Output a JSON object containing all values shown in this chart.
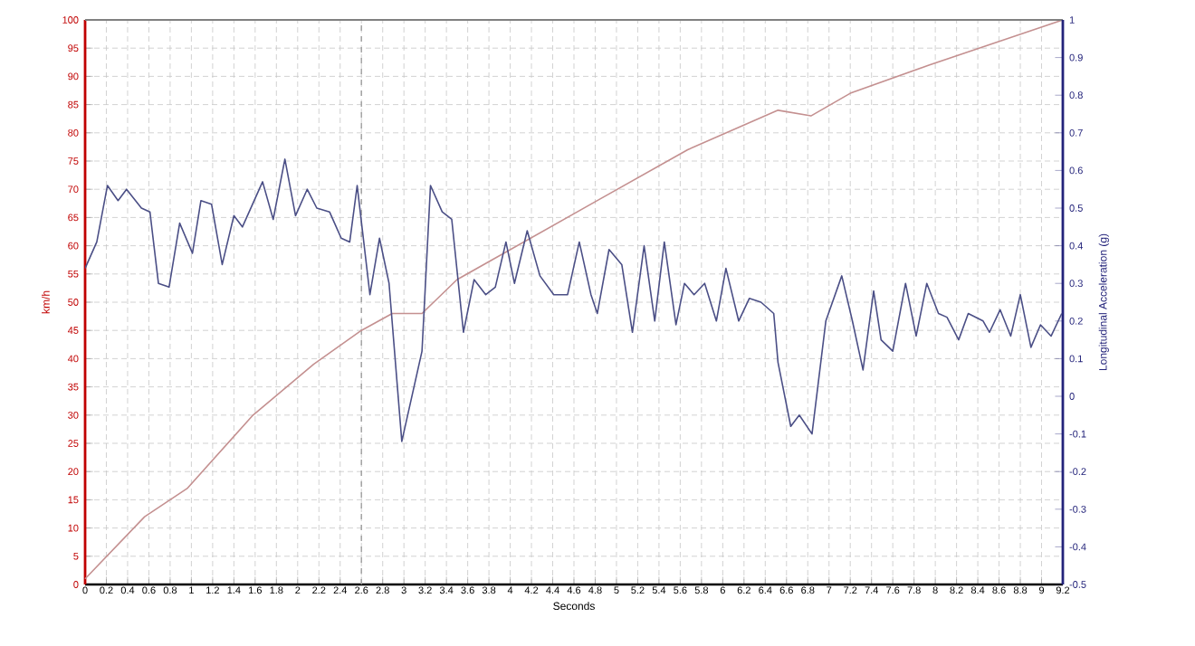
{
  "chart_data": {
    "type": "line",
    "xlabel": "Seconds",
    "ylabel": "km/h",
    "y2label": "Longitudinal Acceleration (g)",
    "xlim": [
      0,
      9.2
    ],
    "xticks": [
      0,
      0.2,
      0.4,
      0.6,
      0.8,
      1,
      1.2,
      1.4,
      1.6,
      1.8,
      2,
      2.2,
      2.4,
      2.6,
      2.8,
      3,
      3.2,
      3.4,
      3.6,
      3.8,
      4,
      4.2,
      4.4,
      4.6,
      4.8,
      5,
      5.2,
      5.4,
      5.6,
      5.8,
      6,
      6.2,
      6.4,
      6.6,
      6.8,
      7,
      7.2,
      7.4,
      7.6,
      7.8,
      8,
      8.2,
      8.4,
      8.6,
      8.8,
      9,
      9.2
    ],
    "ylim": [
      0,
      100
    ],
    "yticks": [
      0,
      5,
      10,
      15,
      20,
      25,
      30,
      35,
      40,
      45,
      50,
      55,
      60,
      65,
      70,
      75,
      80,
      85,
      90,
      95,
      100
    ],
    "y2lim": [
      -0.5,
      1
    ],
    "y2ticks": [
      -0.5,
      -0.4,
      -0.3,
      -0.2,
      -0.1,
      0,
      0.1,
      0.2,
      0.3,
      0.4,
      0.5,
      0.6,
      0.7,
      0.8,
      0.9,
      1
    ],
    "grid": true,
    "ref_lines": [
      {
        "axis": "x",
        "value": 2.6,
        "color": "#a0a0a0",
        "line_style": "dashed"
      }
    ],
    "series": [
      {
        "color": "#c49090",
        "x": [
          0,
          0.56,
          0.96,
          1.58,
          2.15,
          2.6,
          2.89,
          3.17,
          3.5,
          4.82,
          5.67,
          6.52,
          6.83,
          7.2,
          7.94,
          9.2
        ],
        "values": [
          1,
          12,
          17,
          30,
          39,
          45,
          48,
          48,
          54,
          68,
          77,
          84,
          83,
          87,
          92,
          100
        ]
      },
      {
        "color": "#4b4f86",
        "axis": "y2",
        "x": [
          0,
          0.11,
          0.21,
          0.31,
          0.39,
          0.53,
          0.61,
          0.69,
          0.79,
          0.89,
          1.01,
          1.09,
          1.19,
          1.29,
          1.4,
          1.48,
          1.67,
          1.77,
          1.88,
          1.98,
          2.09,
          2.18,
          2.3,
          2.41,
          2.49,
          2.56,
          2.68,
          2.77,
          2.86,
          2.98,
          3.17,
          3.25,
          3.36,
          3.45,
          3.56,
          3.66,
          3.77,
          3.86,
          3.96,
          4.04,
          4.16,
          4.28,
          4.41,
          4.54,
          4.65,
          4.76,
          4.82,
          4.93,
          5.05,
          5.15,
          5.26,
          5.36,
          5.45,
          5.56,
          5.64,
          5.73,
          5.83,
          5.94,
          6.03,
          6.15,
          6.25,
          6.36,
          6.48,
          6.52,
          6.64,
          6.72,
          6.84,
          6.97,
          7.12,
          7.22,
          7.32,
          7.42,
          7.49,
          7.6,
          7.72,
          7.82,
          7.92,
          8.03,
          8.11,
          8.22,
          8.31,
          8.45,
          8.51,
          8.61,
          8.71,
          8.8,
          8.9,
          8.99,
          9.09,
          9.19
        ],
        "values": [
          0.34,
          0.41,
          0.56,
          0.52,
          0.55,
          0.5,
          0.49,
          0.3,
          0.29,
          0.46,
          0.38,
          0.52,
          0.51,
          0.35,
          0.48,
          0.45,
          0.57,
          0.47,
          0.63,
          0.48,
          0.55,
          0.5,
          0.49,
          0.42,
          0.41,
          0.56,
          0.27,
          0.42,
          0.3,
          -0.12,
          0.12,
          0.56,
          0.49,
          0.47,
          0.17,
          0.31,
          0.27,
          0.29,
          0.41,
          0.3,
          0.44,
          0.32,
          0.27,
          0.27,
          0.41,
          0.27,
          0.22,
          0.39,
          0.35,
          0.17,
          0.4,
          0.2,
          0.41,
          0.19,
          0.3,
          0.27,
          0.3,
          0.2,
          0.34,
          0.2,
          0.26,
          0.25,
          0.22,
          0.09,
          -0.08,
          -0.05,
          -0.1,
          0.2,
          0.32,
          0.2,
          0.07,
          0.28,
          0.15,
          0.12,
          0.3,
          0.16,
          0.3,
          0.22,
          0.21,
          0.15,
          0.22,
          0.2,
          0.17,
          0.23,
          0.16,
          0.27,
          0.13,
          0.19,
          0.16,
          0.22
        ]
      }
    ]
  }
}
